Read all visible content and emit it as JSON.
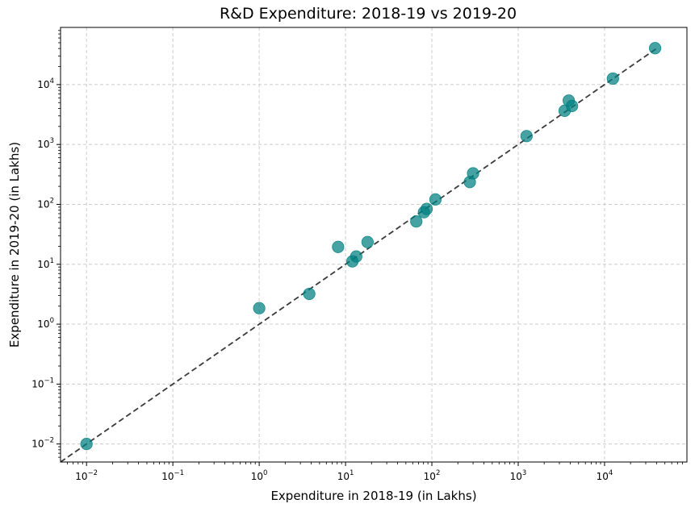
{
  "chart_data": {
    "type": "scatter",
    "title": "R&D Expenditure: 2018-19 vs 2019-20",
    "xlabel": "Expenditure in 2018-19 (in Lakhs)",
    "ylabel": "Expenditure in 2019-20 (in Lakhs)",
    "xscale": "log",
    "yscale": "log",
    "xlim": [
      0.005,
      90000
    ],
    "ylim": [
      0.005,
      90000
    ],
    "grid": true,
    "x_ticks": [
      {
        "base": "10",
        "exp": "−2",
        "value": 0.01
      },
      {
        "base": "10",
        "exp": "−1",
        "value": 0.1
      },
      {
        "base": "10",
        "exp": "0",
        "value": 1
      },
      {
        "base": "10",
        "exp": "1",
        "value": 10
      },
      {
        "base": "10",
        "exp": "2",
        "value": 100
      },
      {
        "base": "10",
        "exp": "3",
        "value": 1000
      },
      {
        "base": "10",
        "exp": "4",
        "value": 10000
      }
    ],
    "y_ticks": [
      {
        "base": "10",
        "exp": "−2",
        "value": 0.01
      },
      {
        "base": "10",
        "exp": "−1",
        "value": 0.1
      },
      {
        "base": "10",
        "exp": "0",
        "value": 1
      },
      {
        "base": "10",
        "exp": "1",
        "value": 10
      },
      {
        "base": "10",
        "exp": "2",
        "value": 100
      },
      {
        "base": "10",
        "exp": "3",
        "value": 1000
      },
      {
        "base": "10",
        "exp": "4",
        "value": 10000
      }
    ],
    "points": [
      {
        "x": 0.01,
        "y": 0.01
      },
      {
        "x": 1.0,
        "y": 1.85
      },
      {
        "x": 3.8,
        "y": 3.2
      },
      {
        "x": 8.2,
        "y": 19.5
      },
      {
        "x": 12.0,
        "y": 11.2
      },
      {
        "x": 13.3,
        "y": 13.5
      },
      {
        "x": 18.0,
        "y": 23.5
      },
      {
        "x": 66,
        "y": 52
      },
      {
        "x": 81,
        "y": 74
      },
      {
        "x": 87,
        "y": 84
      },
      {
        "x": 110,
        "y": 121
      },
      {
        "x": 275,
        "y": 236
      },
      {
        "x": 300,
        "y": 330
      },
      {
        "x": 1250,
        "y": 1380
      },
      {
        "x": 3450,
        "y": 3650
      },
      {
        "x": 3850,
        "y": 5400
      },
      {
        "x": 4200,
        "y": 4400
      },
      {
        "x": 12500,
        "y": 12600
      },
      {
        "x": 38500,
        "y": 40500
      }
    ],
    "reference_line": {
      "style": "dashed",
      "from": 0.005,
      "to": 40000
    },
    "colors": {
      "point_fill": "#008080",
      "point_opacity": 0.72,
      "reference_line": "#3a3a3a",
      "grid": "#cccccc"
    }
  }
}
